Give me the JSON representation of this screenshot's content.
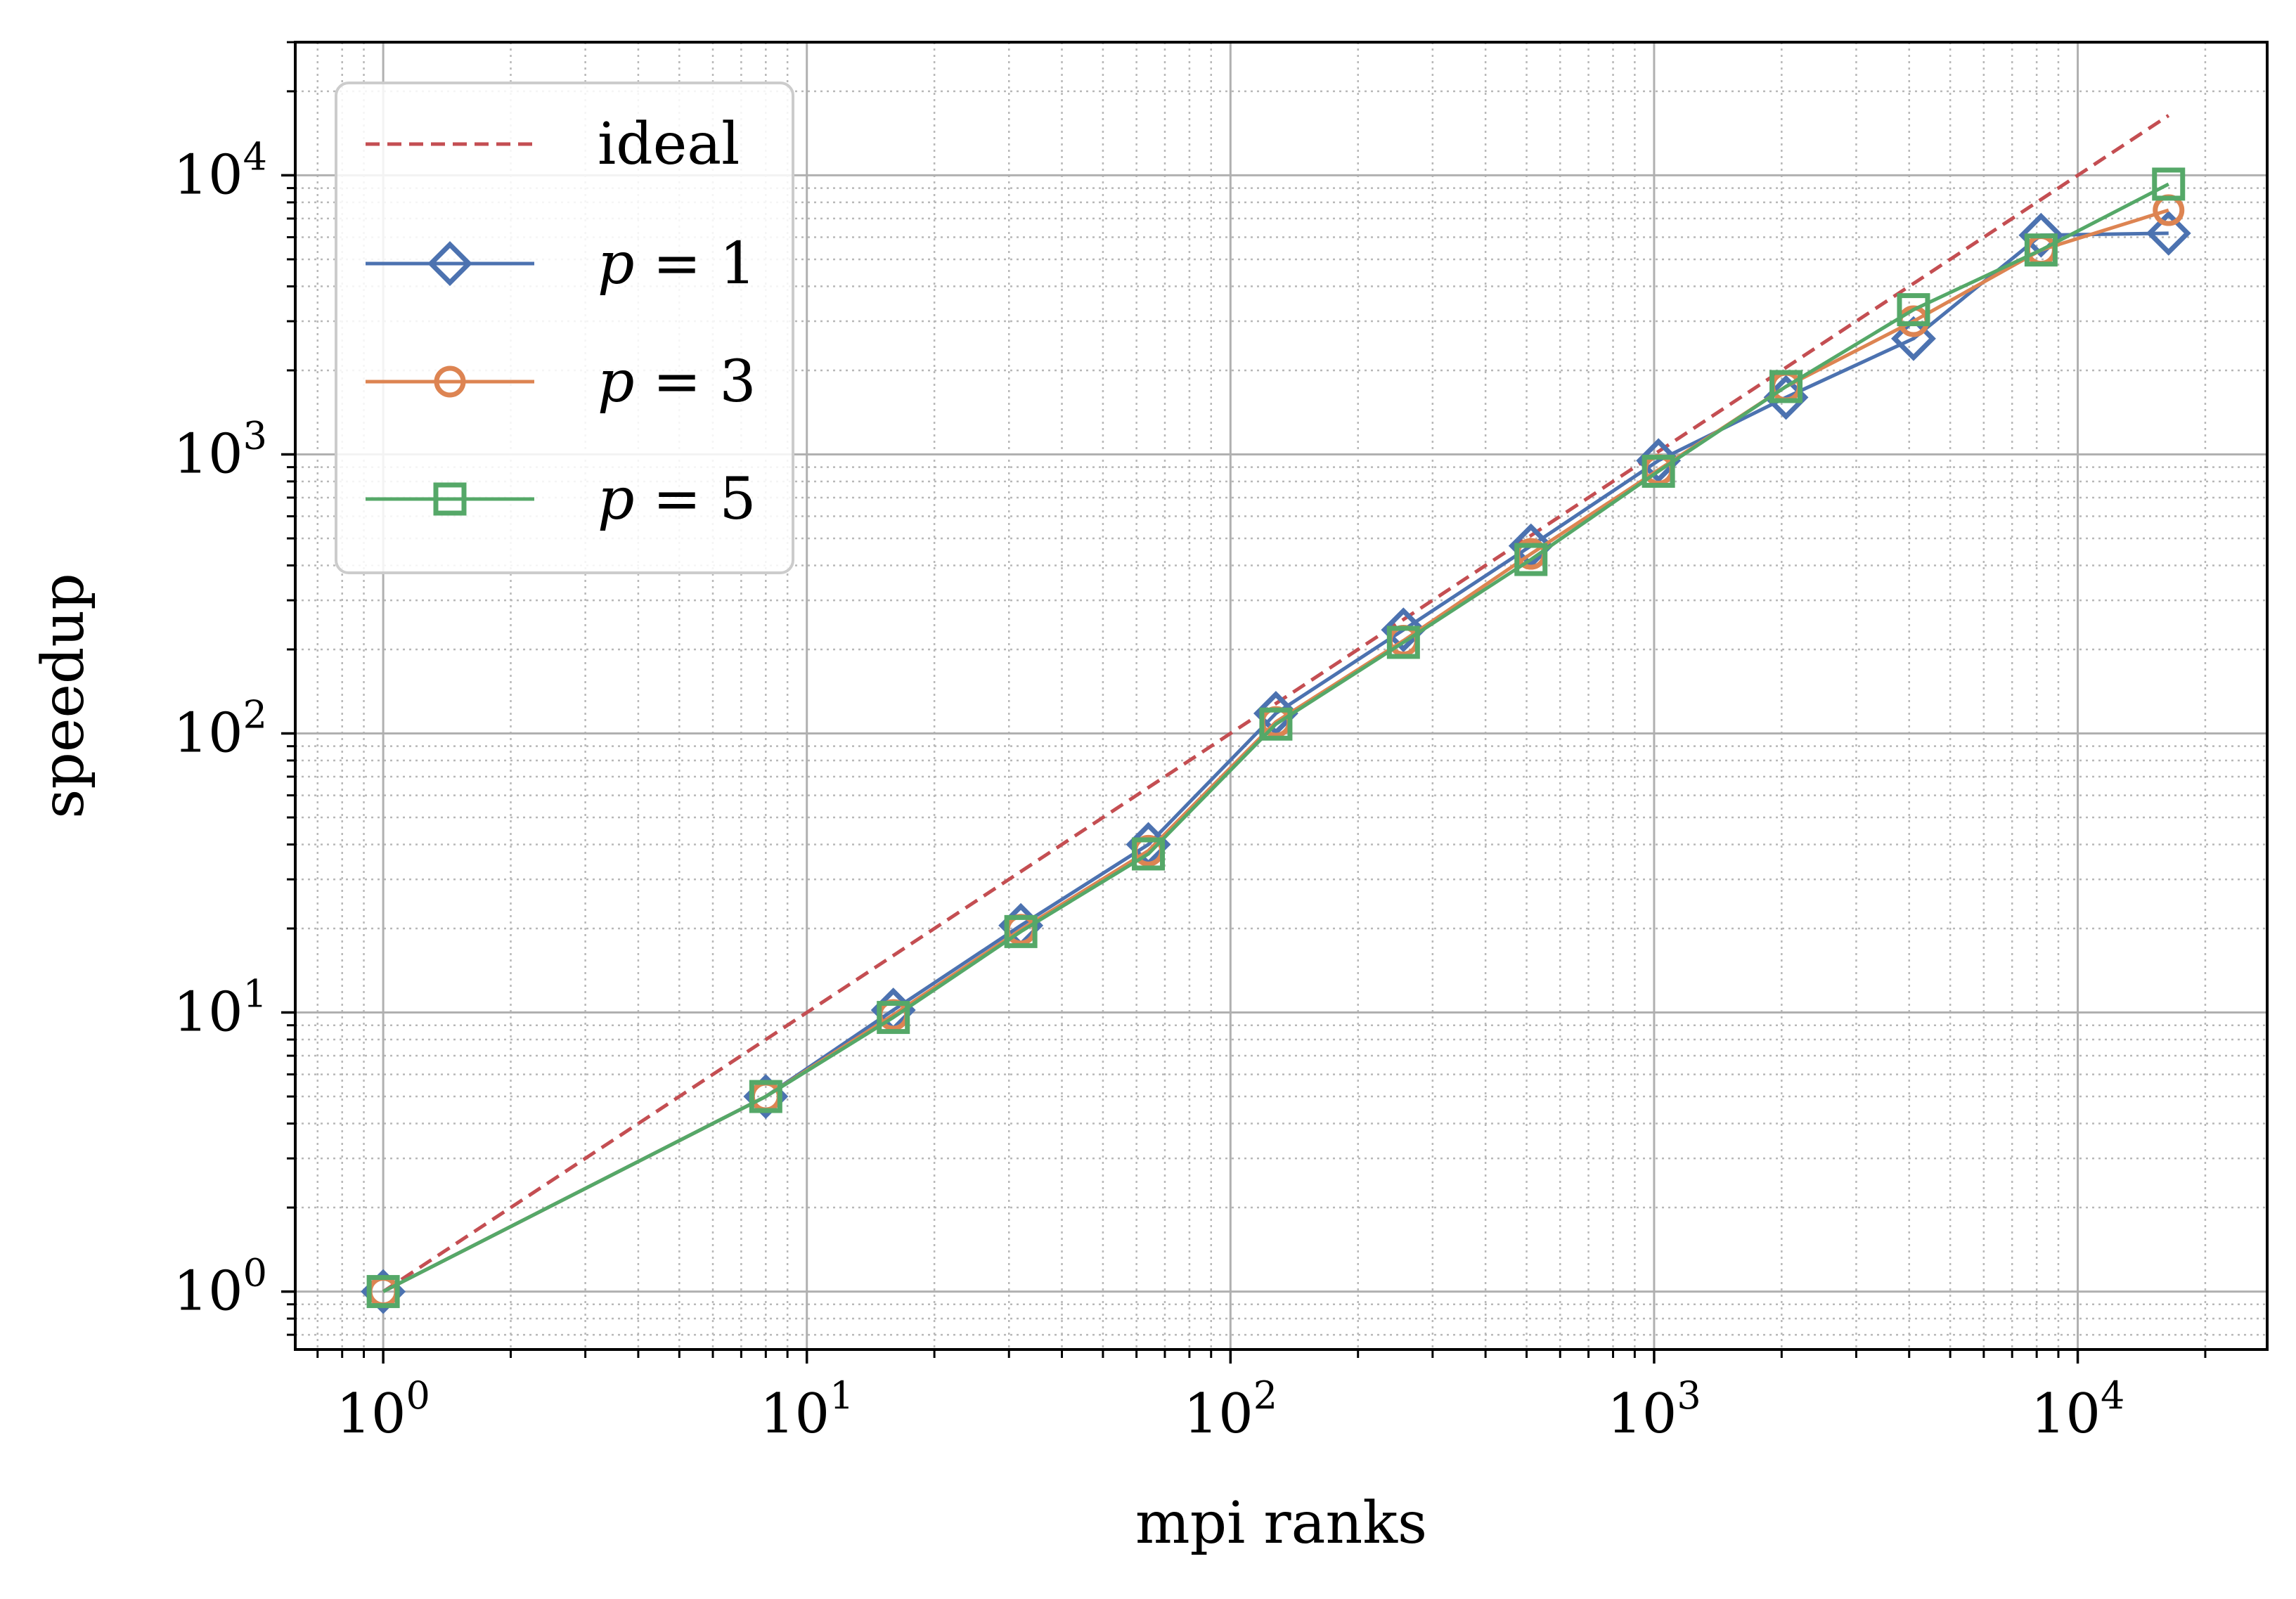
{
  "chart_data": {
    "type": "line",
    "xlabel": "mpi ranks",
    "ylabel": "speedup",
    "xscale": "log",
    "yscale": "log",
    "xlim": [
      0.62,
      28000
    ],
    "ylim": [
      0.62,
      30000
    ],
    "grid": true,
    "legend_position": "top-left",
    "x_ticks": [
      {
        "value": 1,
        "label": "10",
        "exp": "0"
      },
      {
        "value": 10,
        "label": "10",
        "exp": "1"
      },
      {
        "value": 100,
        "label": "10",
        "exp": "2"
      },
      {
        "value": 1000,
        "label": "10",
        "exp": "3"
      },
      {
        "value": 10000,
        "label": "10",
        "exp": "4"
      }
    ],
    "y_ticks": [
      {
        "value": 1,
        "label": "10",
        "exp": "0"
      },
      {
        "value": 10,
        "label": "10",
        "exp": "1"
      },
      {
        "value": 100,
        "label": "10",
        "exp": "2"
      },
      {
        "value": 1000,
        "label": "10",
        "exp": "3"
      },
      {
        "value": 10000,
        "label": "10",
        "exp": "4"
      }
    ],
    "series": [
      {
        "name": "ideal",
        "style": "dashed",
        "marker": "none",
        "color": "#c44e52",
        "x": [
          1,
          16384
        ],
        "y": [
          1,
          16384
        ]
      },
      {
        "name": "p = 1",
        "name_var": "p",
        "name_eq": " = ",
        "name_val": "1",
        "style": "solid",
        "marker": "diamond",
        "color": "#4c72b0",
        "x": [
          1,
          8,
          16,
          32,
          64,
          128,
          256,
          512,
          1024,
          2048,
          4096,
          8192,
          16384
        ],
        "y": [
          1,
          5,
          10.2,
          20.5,
          40,
          118,
          235,
          470,
          950,
          1600,
          2600,
          6100,
          6200
        ]
      },
      {
        "name": "p = 3",
        "name_var": "p",
        "name_eq": " = ",
        "name_val": "3",
        "style": "solid",
        "marker": "circle",
        "color": "#dd8452",
        "x": [
          1,
          8,
          16,
          32,
          64,
          128,
          256,
          512,
          1024,
          2048,
          4096,
          8192,
          16384
        ],
        "y": [
          1,
          5,
          9.8,
          19.8,
          38,
          110,
          215,
          440,
          880,
          1750,
          3000,
          5400,
          7500
        ]
      },
      {
        "name": "p = 5",
        "name_var": "p",
        "name_eq": " = ",
        "name_val": "5",
        "style": "solid",
        "marker": "square",
        "color": "#55a868",
        "x": [
          1,
          8,
          16,
          32,
          64,
          128,
          256,
          512,
          1024,
          2048,
          4096,
          8192,
          16384
        ],
        "y": [
          1,
          5,
          9.6,
          19.5,
          37,
          108,
          212,
          420,
          870,
          1750,
          3300,
          5400,
          9300
        ]
      }
    ]
  }
}
